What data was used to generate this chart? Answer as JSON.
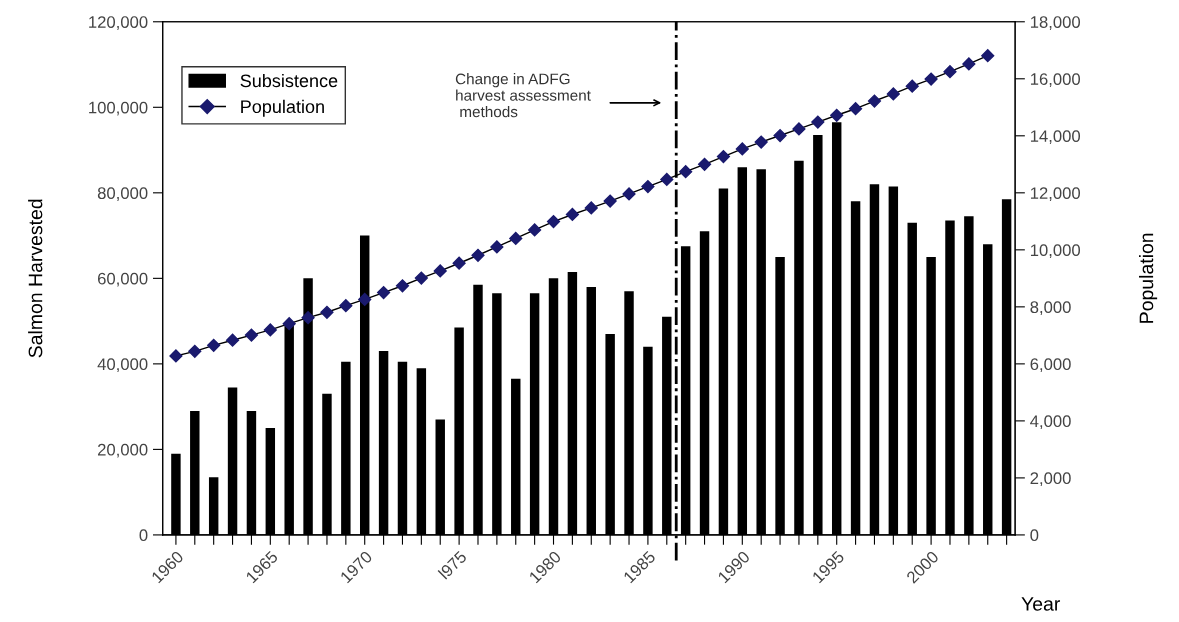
{
  "chart_data": {
    "type": "bar",
    "xlabel": "Year",
    "ylabel": "Salmon Harvested",
    "y2label": "Population",
    "x": [
      1960,
      1961,
      1962,
      1963,
      1964,
      1965,
      1966,
      1967,
      1968,
      1969,
      1970,
      1971,
      1972,
      1973,
      1974,
      1975,
      1976,
      1977,
      1978,
      1979,
      1980,
      1981,
      1982,
      1983,
      1984,
      1985,
      1986,
      1987,
      1988,
      1989,
      1990,
      1991,
      1992,
      1993,
      1994,
      1995,
      1996,
      1997,
      1998,
      1999,
      2000,
      2001,
      2002,
      2003,
      2004
    ],
    "series": [
      {
        "name": "Subsistence",
        "color": "#000000",
        "values": [
          19000,
          29000,
          13500,
          34500,
          29000,
          25000,
          49000,
          60000,
          33000,
          40500,
          70000,
          43000,
          40500,
          39000,
          27000,
          48500,
          58500,
          56500,
          36500,
          56500,
          60000,
          61500,
          58000,
          47000,
          57000,
          44000,
          51000,
          67500,
          71000,
          81000,
          86000,
          85500,
          65000,
          87500,
          93500,
          96500,
          78000,
          82000,
          81500,
          73000,
          65000,
          73500,
          74500,
          68000,
          78500
        ]
      },
      {
        "name": "Population",
        "type": "line",
        "axis": "y2",
        "color": "#1a1a6e",
        "marker": "diamond",
        "line_style": "solid",
        "x": [
          1960,
          1961,
          1962,
          1963,
          1964,
          1965,
          1966,
          1967,
          1968,
          1969,
          1970,
          1971,
          1972,
          1973,
          1974,
          1975,
          1976,
          1977,
          1978,
          1979,
          1980,
          1981,
          1982,
          1983,
          1984,
          1985,
          1986,
          1987,
          1988,
          1989,
          1990,
          1991,
          1992,
          1993,
          1994,
          1995,
          1996,
          1997,
          1998,
          1999,
          2000,
          2001,
          2002,
          2003
        ],
        "values": [
          6280,
          6440,
          6650,
          6830,
          7010,
          7190,
          7410,
          7620,
          7810,
          8040,
          8260,
          8500,
          8740,
          9010,
          9260,
          9530,
          9810,
          10100,
          10400,
          10700,
          10990,
          11240,
          11470,
          11710,
          11960,
          12220,
          12470,
          12740,
          13000,
          13270,
          13540,
          13780,
          14010,
          14240,
          14480,
          14720,
          14950,
          15220,
          15470,
          15740,
          15990,
          16250,
          16520,
          16810
        ]
      }
    ],
    "xlim": [
      1959.3,
      2004.45
    ],
    "xticks": [
      {
        "value": 1960,
        "label": "1960"
      },
      {
        "value": 1961,
        "label": null
      },
      {
        "value": 1962,
        "label": null
      },
      {
        "value": 1963,
        "label": null
      },
      {
        "value": 1964,
        "label": null
      },
      {
        "value": 1965,
        "label": "1965"
      },
      {
        "value": 1966,
        "label": null
      },
      {
        "value": 1967,
        "label": null
      },
      {
        "value": 1968,
        "label": null
      },
      {
        "value": 1969,
        "label": null
      },
      {
        "value": 1970,
        "label": "1970"
      },
      {
        "value": 1971,
        "label": null
      },
      {
        "value": 1972,
        "label": null
      },
      {
        "value": 1973,
        "label": null
      },
      {
        "value": 1974,
        "label": null
      },
      {
        "value": 1975,
        "label": "l975"
      },
      {
        "value": 1976,
        "label": null
      },
      {
        "value": 1977,
        "label": null
      },
      {
        "value": 1978,
        "label": null
      },
      {
        "value": 1979,
        "label": null
      },
      {
        "value": 1980,
        "label": "1980"
      },
      {
        "value": 1981,
        "label": null
      },
      {
        "value": 1982,
        "label": null
      },
      {
        "value": 1983,
        "label": null
      },
      {
        "value": 1984,
        "label": null
      },
      {
        "value": 1985,
        "label": "1985"
      },
      {
        "value": 1986,
        "label": null
      },
      {
        "value": 1987,
        "label": null
      },
      {
        "value": 1988,
        "label": null
      },
      {
        "value": 1989,
        "label": null
      },
      {
        "value": 1990,
        "label": "1990"
      },
      {
        "value": 1991,
        "label": null
      },
      {
        "value": 1992,
        "label": null
      },
      {
        "value": 1993,
        "label": null
      },
      {
        "value": 1994,
        "label": null
      },
      {
        "value": 1995,
        "label": "1995"
      },
      {
        "value": 1996,
        "label": null
      },
      {
        "value": 1997,
        "label": null
      },
      {
        "value": 1998,
        "label": null
      },
      {
        "value": 1999,
        "label": null
      },
      {
        "value": 2000,
        "label": "2000"
      },
      {
        "value": 2001,
        "label": null
      },
      {
        "value": 2002,
        "label": null
      },
      {
        "value": 2003,
        "label": null
      },
      {
        "value": 2004,
        "label": null
      }
    ],
    "ylim": [
      0,
      120000
    ],
    "yticks": [
      {
        "value": 0,
        "label": "0"
      },
      {
        "value": 20000,
        "label": "20,000"
      },
      {
        "value": 40000,
        "label": "40,000"
      },
      {
        "value": 60000,
        "label": "60,000"
      },
      {
        "value": 80000,
        "label": "80,000"
      },
      {
        "value": 100000,
        "label": "100,000"
      },
      {
        "value": 120000,
        "label": "120,000"
      }
    ],
    "y2lim": [
      0,
      18000
    ],
    "y2ticks": [
      {
        "value": 0,
        "label": "0"
      },
      {
        "value": 2000,
        "label": "2,000"
      },
      {
        "value": 4000,
        "label": "4,000"
      },
      {
        "value": 6000,
        "label": "6,000"
      },
      {
        "value": 8000,
        "label": "8,000"
      },
      {
        "value": 10000,
        "label": "10,000"
      },
      {
        "value": 12000,
        "label": "12,000"
      },
      {
        "value": 14000,
        "label": "14,000"
      },
      {
        "value": 16000,
        "label": "16,000"
      },
      {
        "value": 18000,
        "label": "18,000"
      }
    ],
    "ref_lines": [
      {
        "axis": "x",
        "value": 1986.5,
        "label": null,
        "color": "#000000",
        "line_style": "dashdot"
      }
    ],
    "annotations": [
      "Change in ADFG\nharvest assessment\n methods"
    ],
    "legend": "top left",
    "grid": false
  }
}
